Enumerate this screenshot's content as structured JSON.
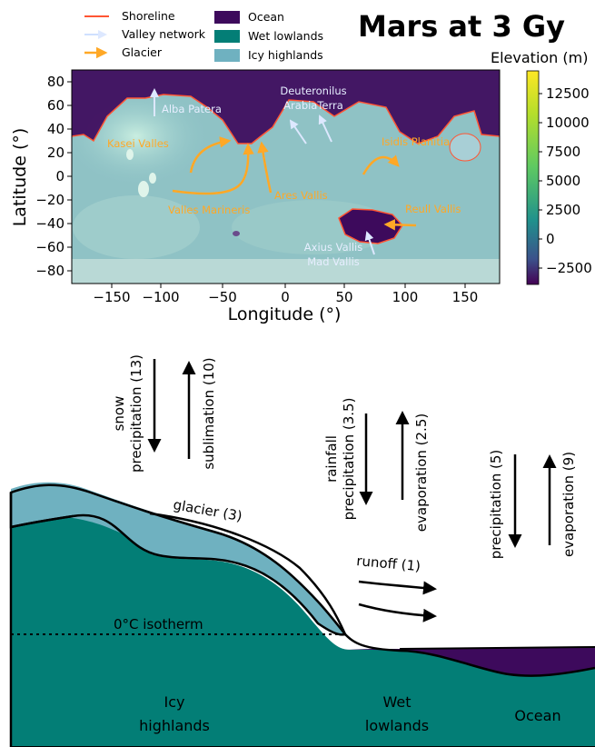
{
  "figure": {
    "title": "Mars at 3 Gy",
    "legend": [
      {
        "label": "Shoreline",
        "type": "line",
        "color": "#ff5533"
      },
      {
        "label": "Valley network",
        "type": "arrow",
        "color": "#cfe0ff"
      },
      {
        "label": "Glacier",
        "type": "arrow",
        "color": "#ffa826"
      },
      {
        "label": "Ocean",
        "type": "patch",
        "color": "#3d0a5c"
      },
      {
        "label": "Wet lowlands",
        "type": "patch",
        "color": "#037e76"
      },
      {
        "label": "Icy highlands",
        "type": "patch",
        "color": "#6fb1c0"
      }
    ]
  },
  "map": {
    "xlabel": "Longitude (°)",
    "ylabel": "Latitude (°)",
    "xticks": [
      "−150",
      "−100",
      "−50",
      "0",
      "50",
      "100",
      "150"
    ],
    "yticks": [
      "80",
      "60",
      "40",
      "20",
      "0",
      "−20",
      "−40",
      "−60",
      "−80"
    ],
    "colorbar": {
      "title": "Elevation (m)",
      "ticks": [
        "12500",
        "10000",
        "7500",
        "5000",
        "2500",
        "0",
        "−2500"
      ]
    },
    "valley_labels": [
      "Alba Patera",
      "Deuteronilus",
      "ArabiaTerra",
      "Axius Vallis",
      "Mad Vallis"
    ],
    "glacier_labels": [
      "Kasei Valles",
      "Isidis Planitia",
      "Ares Vallis",
      "Valles Marineris",
      "Reull Vallis"
    ]
  },
  "diagram": {
    "fluxes": {
      "snow_line1": "snow",
      "snow_line2": "precipitation (13)",
      "sublimation": "sublimation (10)",
      "rain_line1": "rainfall",
      "rain_line2": "precipitation (3.5)",
      "evap_lowland": "evaporation (2.5)",
      "precip_ocean": "precipitation (5)",
      "evap_ocean": "evaporation (9)",
      "glacier": "glacier (3)",
      "runoff": "runoff (1)",
      "isotherm": "0°C isotherm"
    },
    "regions": {
      "icy_1": "Icy",
      "icy_2": "highlands",
      "wet_1": "Wet",
      "wet_2": "lowlands",
      "ocean": "Ocean"
    }
  }
}
